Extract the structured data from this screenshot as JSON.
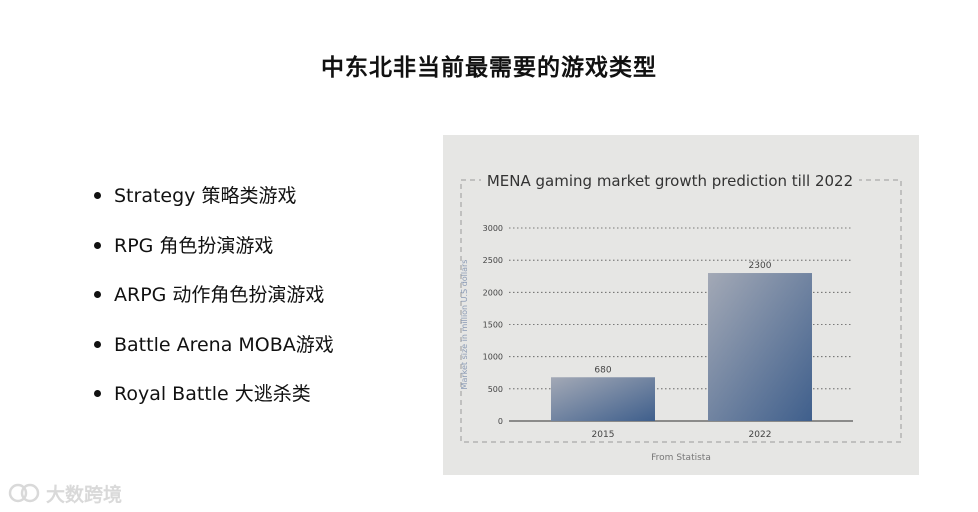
{
  "slide": {
    "title": "中东北非当前最需要的游戏类型",
    "bullets": [
      "Strategy 策略类游戏",
      "RPG 角色扮演游戏",
      "ARPG 动作角色扮演游戏",
      "Battle Arena MOBA游戏",
      "Royal Battle 大逃杀类"
    ]
  },
  "watermark": {
    "icon": "logo-icon",
    "text": "大数跨境"
  },
  "chart_data": {
    "type": "bar",
    "title": "MENA gaming market growth prediction till 2022",
    "ylabel": "Market size in million U.S dollars",
    "xlabel": "",
    "source": "From Statista",
    "categories": [
      "2015",
      "2022"
    ],
    "values": [
      680,
      2300
    ],
    "data_labels": [
      "680",
      "2300"
    ],
    "ylim": [
      0,
      3000
    ],
    "yticks": [
      0,
      500,
      1000,
      1500,
      2000,
      2500,
      3000
    ],
    "grid": true,
    "grid_style": "dotted",
    "colors": {
      "bar_start": "#a3a9b6",
      "bar_end": "#3f5f8c",
      "panel_bg": "#e6e6e4",
      "text": "#444444"
    }
  }
}
